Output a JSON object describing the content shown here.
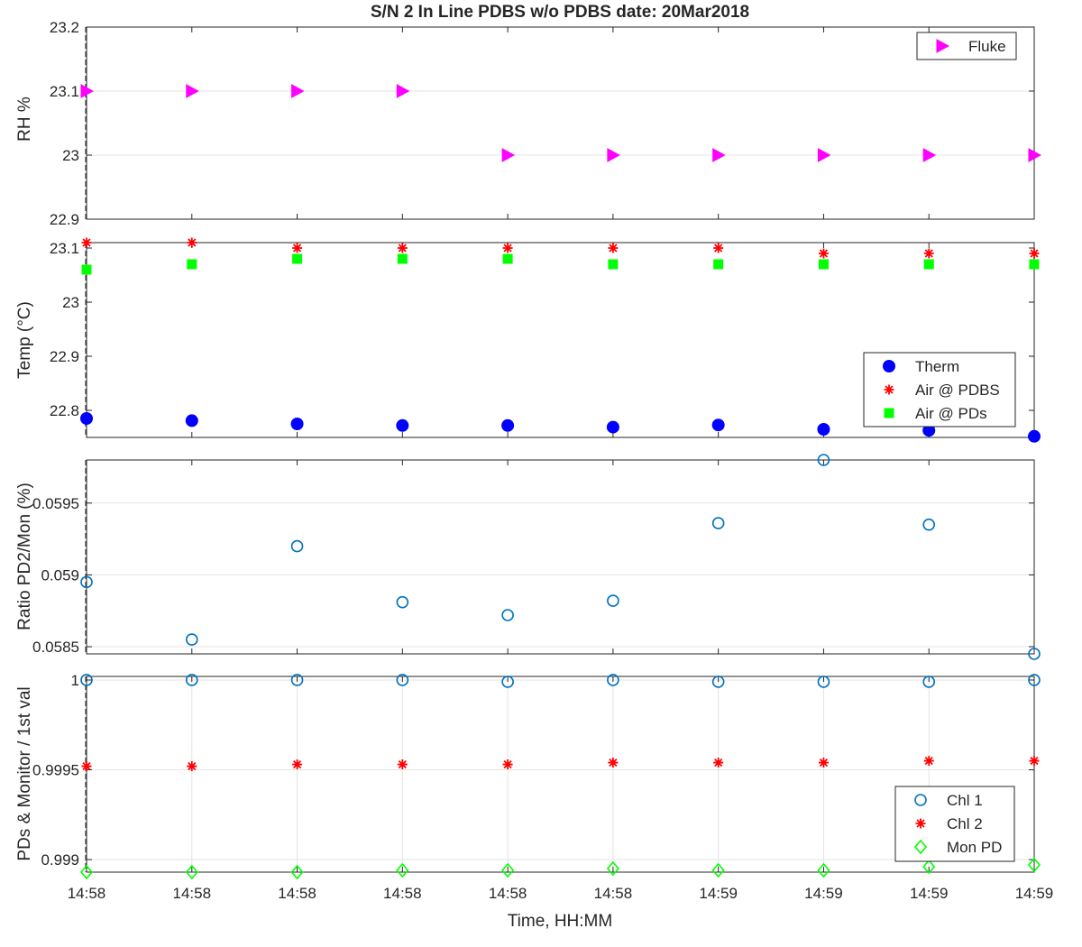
{
  "chart_data": {
    "title": "S/N 2 In Line PDBS w/o PDBS date: 20Mar2018",
    "xlabel": "Time, HH:MM",
    "x_ticks": [
      "14:58",
      "14:58",
      "14:58",
      "14:58",
      "14:58",
      "14:58",
      "14:59",
      "14:59",
      "14:59",
      "14:59"
    ],
    "panels": [
      {
        "type": "scatter",
        "ylabel": "RH %",
        "ylim": [
          22.9,
          23.2
        ],
        "yticks": [
          "22.9",
          "23",
          "23.1",
          "23.2"
        ],
        "grid": true,
        "legend_position": "top-right",
        "series": [
          {
            "name": "Fluke",
            "marker": "triangle-right",
            "color": "#ff00ff",
            "values": [
              23.1,
              23.1,
              23.1,
              23.1,
              23.0,
              23.0,
              23.0,
              23.0,
              23.0,
              23.0
            ]
          }
        ]
      },
      {
        "type": "scatter",
        "ylabel": "Temp (°C)",
        "ylim": [
          22.75,
          23.11
        ],
        "yticks": [
          "22.8",
          "22.9",
          "23",
          "23.1"
        ],
        "grid": false,
        "legend_position": "right",
        "series": [
          {
            "name": "Therm",
            "marker": "filled-circle",
            "color": "#0000ff",
            "values": [
              22.785,
              22.781,
              22.775,
              22.772,
              22.772,
              22.769,
              22.773,
              22.765,
              22.763,
              22.752
            ]
          },
          {
            "name": "Air @ PDBS",
            "marker": "asterisk",
            "color": "#ff0000",
            "values": [
              23.11,
              23.11,
              23.1,
              23.1,
              23.1,
              23.1,
              23.1,
              23.09,
              23.09,
              23.09
            ]
          },
          {
            "name": "Air @ PDs",
            "marker": "filled-square",
            "color": "#00ff00",
            "values": [
              23.06,
              23.07,
              23.08,
              23.08,
              23.08,
              23.07,
              23.07,
              23.07,
              23.07,
              23.07
            ]
          }
        ]
      },
      {
        "type": "scatter",
        "ylabel": "Ratio PD2/Mon (%)",
        "ylim": [
          0.05845,
          0.0598
        ],
        "yticks": [
          "0.0585",
          "0.059",
          "0.0595"
        ],
        "grid": true,
        "series": [
          {
            "name": "",
            "marker": "open-circle",
            "color": "#0072bd",
            "values": [
              0.05895,
              0.05855,
              0.0592,
              0.05881,
              0.05872,
              0.05882,
              0.05936,
              0.0598,
              0.05935,
              0.05845
            ]
          }
        ]
      },
      {
        "type": "scatter",
        "ylabel": "PDs & Monitor / 1st val",
        "ylim": [
          0.99893,
          1.00002
        ],
        "yticks": [
          "0.999",
          "0.9995",
          "1"
        ],
        "grid": true,
        "legend_position": "bottom-right",
        "series": [
          {
            "name": "Chl 1",
            "marker": "open-circle",
            "color": "#0072bd",
            "values": [
              1.0,
              1.0,
              1.0,
              1.0,
              0.99999,
              1.0,
              0.99999,
              0.99999,
              0.99999,
              1.0
            ]
          },
          {
            "name": "Chl 2",
            "marker": "asterisk",
            "color": "#ff0000",
            "values": [
              0.99952,
              0.99952,
              0.99953,
              0.99953,
              0.99953,
              0.99954,
              0.99954,
              0.99954,
              0.99955,
              0.99955
            ]
          },
          {
            "name": "Mon PD",
            "marker": "open-diamond",
            "color": "#00ff00",
            "values": [
              0.99893,
              0.99893,
              0.99893,
              0.99894,
              0.99894,
              0.99895,
              0.99894,
              0.99894,
              0.99896,
              0.99897
            ]
          }
        ]
      }
    ]
  }
}
